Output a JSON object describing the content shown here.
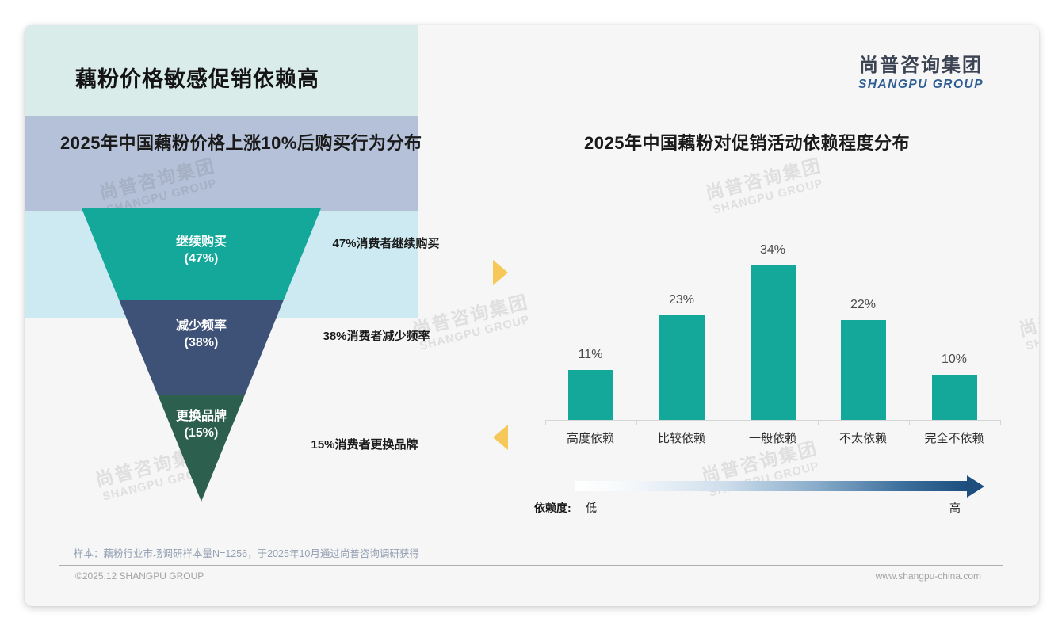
{
  "page": {
    "title": "藕粉价格敏感促销依赖高",
    "logo": {
      "cn": "尚普咨询集团",
      "en": "SHANGPU GROUP"
    },
    "watermark": {
      "cn": "尚普咨询集团",
      "en": "SHANGPU GROUP"
    },
    "footnote": "样本：藕粉行业市场调研样本量N=1256，于2025年10月通过尚普咨询调研获得",
    "footer": {
      "left": "©2025.12 SHANGPU GROUP",
      "right": "www.shangpu-china.com"
    }
  },
  "colors": {
    "teal": "#14a89b",
    "navy": "#3e5278",
    "dark_green": "#2d5f4f",
    "mint_band": "#d9ecea",
    "lavender_band": "#b5c1d8",
    "cyan_band": "#cdeaf2",
    "yellow_arrow": "#f6c85a",
    "gradient_end": "#1d4e7e",
    "card_bg": "#f6f6f6"
  },
  "chart_data": [
    {
      "type": "funnel",
      "title": "2025年中国藕粉价格上涨10%后购买行为分布",
      "stages": [
        {
          "label": "继续购买",
          "value": 47,
          "note": "47%消费者继续购买",
          "fill": "#14a89b",
          "band": "#d9ecea"
        },
        {
          "label": "减少频率",
          "value": 38,
          "note": "38%消费者减少频率",
          "fill": "#3e5278",
          "band": "#b5c1d8"
        },
        {
          "label": "更换品牌",
          "value": 15,
          "note": "15%消费者更换品牌",
          "fill": "#2d5f4f",
          "band": "#cdeaf2"
        }
      ]
    },
    {
      "type": "bar",
      "title": "2025年中国藕粉对促销活动依赖程度分布",
      "categories": [
        "高度依赖",
        "比较依赖",
        "一般依赖",
        "不太依赖",
        "完全不依赖"
      ],
      "values": [
        11,
        23,
        34,
        22,
        10
      ],
      "unit": "%",
      "bar_color": "#14a89b",
      "ylim": [
        0,
        40
      ],
      "grid": false,
      "legend": {
        "label": "依赖度:",
        "low": "低",
        "high": "高"
      }
    }
  ]
}
